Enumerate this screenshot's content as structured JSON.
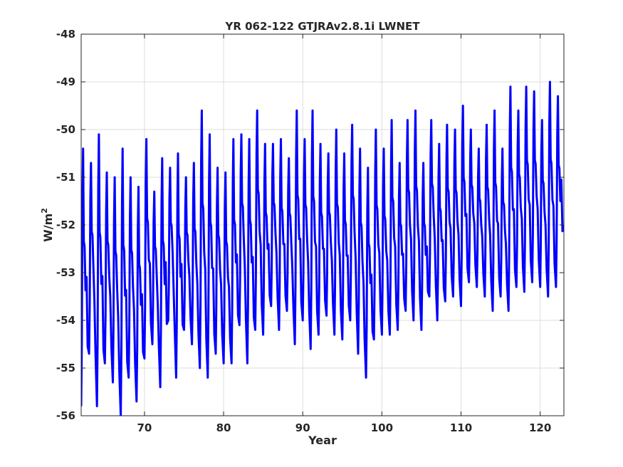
{
  "chart_data": {
    "type": "line",
    "title": "YR 062-122 GTJRAv2.8.1i LWNET",
    "xlabel": "Year",
    "ylabel": "W/m",
    "ylabel_sup": "2",
    "xlim": [
      62,
      123
    ],
    "ylim": [
      -56,
      -48
    ],
    "xticks": [
      70,
      80,
      90,
      100,
      110,
      120
    ],
    "yticks": [
      -48,
      -49,
      -50,
      -51,
      -52,
      -53,
      -54,
      -55,
      -56
    ],
    "grid": true,
    "legend": "none",
    "series": [
      {
        "color": "#0000ff",
        "cycle_years": 1,
        "peaks": [
          -50.4,
          -50.7,
          -50.1,
          -50.9,
          -51.0,
          -50.4,
          -51.0,
          -51.2,
          -50.2,
          -51.3,
          -50.6,
          -50.8,
          -50.5,
          -51.0,
          -50.7,
          -49.6,
          -50.1,
          -50.8,
          -50.9,
          -50.2,
          -50.1,
          -50.2,
          -49.6,
          -50.3,
          -50.3,
          -50.2,
          -50.6,
          -49.6,
          -50.2,
          -49.6,
          -50.3,
          -50.5,
          -50.0,
          -50.5,
          -49.9,
          -50.4,
          -50.8,
          -50.0,
          -50.4,
          -49.8,
          -50.7,
          -49.8,
          -49.6,
          -50.7,
          -49.8,
          -50.3,
          -49.9,
          -50.0,
          -49.5,
          -50.0,
          -50.4,
          -49.9,
          -49.6,
          -50.4,
          -49.1,
          -49.6,
          -49.1,
          -49.2,
          -49.8,
          -49.0,
          -49.3
        ],
        "troughs": [
          -55.8,
          -54.7,
          -55.8,
          -54.9,
          -55.3,
          -56.0,
          -55.2,
          -55.7,
          -54.8,
          -54.5,
          -55.4,
          -54.0,
          -55.2,
          -54.2,
          -54.5,
          -55.0,
          -55.2,
          -54.7,
          -54.9,
          -54.9,
          -54.1,
          -54.9,
          -54.2,
          -54.3,
          -53.7,
          -54.2,
          -53.8,
          -54.5,
          -54.0,
          -54.6,
          -54.3,
          -53.9,
          -54.3,
          -54.4,
          -54.0,
          -54.7,
          -55.2,
          -54.4,
          -54.3,
          -54.3,
          -54.2,
          -53.8,
          -54.0,
          -54.2,
          -53.5,
          -54.0,
          -53.6,
          -53.5,
          -53.7,
          -53.2,
          -53.3,
          -53.5,
          -53.8,
          -53.5,
          -53.8,
          -53.3,
          -53.4,
          -53.2,
          -53.3,
          -53.5,
          -53.3
        ],
        "end_value": -52.0
      }
    ]
  }
}
